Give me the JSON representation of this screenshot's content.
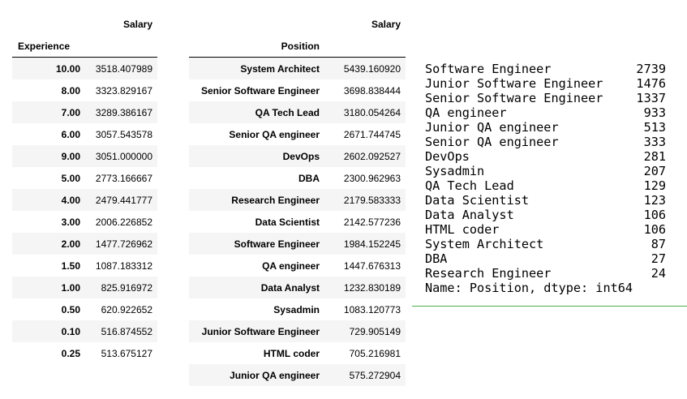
{
  "experience_table": {
    "column_header": "Salary",
    "index_name": "Experience",
    "rows": [
      {
        "index": "10.00",
        "value": "3518.407989"
      },
      {
        "index": "8.00",
        "value": "3323.829167"
      },
      {
        "index": "7.00",
        "value": "3289.386167"
      },
      {
        "index": "6.00",
        "value": "3057.543578"
      },
      {
        "index": "9.00",
        "value": "3051.000000"
      },
      {
        "index": "5.00",
        "value": "2773.166667"
      },
      {
        "index": "4.00",
        "value": "2479.441777"
      },
      {
        "index": "3.00",
        "value": "2006.226852"
      },
      {
        "index": "2.00",
        "value": "1477.726962"
      },
      {
        "index": "1.50",
        "value": "1087.183312"
      },
      {
        "index": "1.00",
        "value": "825.916972"
      },
      {
        "index": "0.50",
        "value": "620.922652"
      },
      {
        "index": "0.10",
        "value": "516.874552"
      },
      {
        "index": "0.25",
        "value": "513.675127"
      }
    ]
  },
  "position_table": {
    "column_header": "Salary",
    "index_name": "Position",
    "rows": [
      {
        "index": "System Architect",
        "value": "5439.160920"
      },
      {
        "index": "Senior Software Engineer",
        "value": "3698.838444"
      },
      {
        "index": "QA Tech Lead",
        "value": "3180.054264"
      },
      {
        "index": "Senior QA engineer",
        "value": "2671.744745"
      },
      {
        "index": "DevOps",
        "value": "2602.092527"
      },
      {
        "index": "DBA",
        "value": "2300.962963"
      },
      {
        "index": "Research Engineer",
        "value": "2179.583333"
      },
      {
        "index": "Data Scientist",
        "value": "2142.577236"
      },
      {
        "index": "Software Engineer",
        "value": "1984.152245"
      },
      {
        "index": "QA engineer",
        "value": "1447.676313"
      },
      {
        "index": "Data Analyst",
        "value": "1232.830189"
      },
      {
        "index": "Sysadmin",
        "value": "1083.120773"
      },
      {
        "index": "Junior Software Engineer",
        "value": "729.905149"
      },
      {
        "index": "HTML coder",
        "value": "705.216981"
      },
      {
        "index": "Junior QA engineer",
        "value": "575.272904"
      }
    ]
  },
  "position_counts": {
    "rows": [
      {
        "label": "Software Engineer",
        "count": "2739"
      },
      {
        "label": "Junior Software Engineer",
        "count": "1476"
      },
      {
        "label": "Senior Software Engineer",
        "count": "1337"
      },
      {
        "label": "QA engineer",
        "count": "933"
      },
      {
        "label": "Junior QA engineer",
        "count": "513"
      },
      {
        "label": "Senior QA engineer",
        "count": "333"
      },
      {
        "label": "DevOps",
        "count": "281"
      },
      {
        "label": "Sysadmin",
        "count": "207"
      },
      {
        "label": "QA Tech Lead",
        "count": "129"
      },
      {
        "label": "Data Scientist",
        "count": "123"
      },
      {
        "label": "Data Analyst",
        "count": "106"
      },
      {
        "label": "HTML coder",
        "count": "106"
      },
      {
        "label": "System Architect",
        "count": "87"
      },
      {
        "label": "DBA",
        "count": "27"
      },
      {
        "label": "Research Engineer",
        "count": "24"
      }
    ],
    "footer": "Name: Position, dtype: int64"
  },
  "colors": {
    "stripe": "#f5f5f5",
    "output_separator": "#4caf50"
  }
}
